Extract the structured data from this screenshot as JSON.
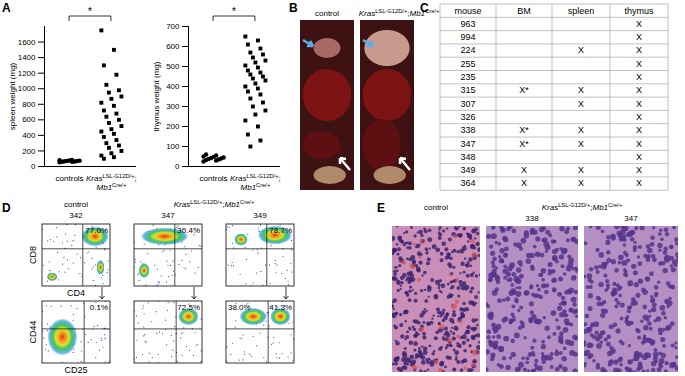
{
  "panel_labels": [
    "A",
    "B",
    "C",
    "D",
    "E"
  ],
  "chart_data": [
    {
      "type": "scatter",
      "ylabel": "spleen weight (mg)",
      "ylim": [
        0,
        1800
      ],
      "yticks": [
        0,
        200,
        400,
        600,
        800,
        1000,
        1200,
        1400,
        1600
      ],
      "annotations": [
        "*"
      ],
      "series": [
        {
          "name": "controls",
          "marker": "circle",
          "color": "#000000",
          "values": [
            55,
            60,
            62,
            65,
            68,
            70,
            72,
            75,
            78,
            80,
            85
          ]
        },
        {
          "name": "KrasLSL-G12D/+;Mb1Cre/+",
          "marker": "square",
          "color": "#000000",
          "values": [
            1750,
            1500,
            1300,
            1180,
            1050,
            980,
            950,
            900,
            870,
            820,
            780,
            720,
            680,
            640,
            600,
            560,
            520,
            480,
            450,
            420,
            380,
            340,
            300,
            270,
            240,
            200,
            170,
            140,
            120,
            100
          ]
        }
      ]
    },
    {
      "type": "scatter",
      "ylabel": "thymus weight (mg)",
      "ylim": [
        0,
        700
      ],
      "yticks": [
        0,
        100,
        200,
        300,
        400,
        500,
        600,
        700
      ],
      "annotations": [
        "*"
      ],
      "series": [
        {
          "name": "controls",
          "marker": "circle",
          "color": "#000000",
          "values": [
            25,
            30,
            32,
            35,
            38,
            40,
            42,
            45,
            48,
            50,
            55,
            60
          ]
        },
        {
          "name": "KrasLSL-G12D/+;Mb1Cre/+",
          "marker": "square",
          "color": "#000000",
          "values": [
            650,
            630,
            610,
            590,
            570,
            560,
            545,
            530,
            520,
            505,
            495,
            480,
            470,
            460,
            450,
            440,
            430,
            415,
            400,
            390,
            375,
            360,
            340,
            320,
            300,
            280,
            260,
            230,
            200,
            160,
            130,
            100
          ]
        }
      ]
    }
  ],
  "photo_B": {
    "labels": [
      "control",
      "KrasLSL-G12D/+;Mb1Cre/+"
    ]
  },
  "table_C": {
    "header": [
      "mouse",
      "BM",
      "spleen",
      "thymus"
    ],
    "rows": [
      [
        "963",
        null,
        null,
        "X"
      ],
      [
        "994",
        null,
        null,
        "X"
      ],
      [
        "224",
        null,
        "X",
        "X"
      ],
      [
        "255",
        null,
        null,
        "X"
      ],
      [
        "235",
        null,
        null,
        "X"
      ],
      [
        "315",
        "X*",
        "X",
        "X"
      ],
      [
        "307",
        null,
        "X",
        "X"
      ],
      [
        "326",
        null,
        null,
        "X"
      ],
      [
        "338",
        "X*",
        "X",
        "X"
      ],
      [
        "347",
        "X*",
        "X",
        "X"
      ],
      [
        "348",
        null,
        null,
        "X"
      ],
      [
        "349",
        "X",
        "X",
        "X"
      ],
      [
        "364",
        "X",
        "X",
        "X"
      ]
    ]
  },
  "flow_D": {
    "axes": {
      "top": {
        "x": "CD4",
        "y": "CD8"
      },
      "bottom": {
        "x": "CD25",
        "y": "CD44"
      }
    },
    "columns": [
      {
        "group": "control",
        "mouse": "342",
        "top_gates": [
          null,
          "77.0%"
        ],
        "bottom_gates": [
          null,
          "0.1%"
        ]
      },
      {
        "group": "KrasLSL-G12D/+;Mb1Cre/+",
        "mouse": "347",
        "top_gates": [
          null,
          "30.4%"
        ],
        "bottom_gates": [
          null,
          "72.5%"
        ]
      },
      {
        "group": "KrasLSL-G12D/+;Mb1Cre/+",
        "mouse": "349",
        "top_gates": [
          null,
          "78.7%"
        ],
        "bottom_gates": [
          "38.0%",
          "41.3%"
        ]
      }
    ]
  },
  "histology_E": {
    "columns": [
      {
        "group": "control",
        "mouse": null
      },
      {
        "group": "KrasLSL-G12D/+;Mb1Cre/+",
        "mouse": "338"
      },
      {
        "group": "KrasLSL-G12D/+;Mb1Cre/+",
        "mouse": "347"
      }
    ]
  }
}
